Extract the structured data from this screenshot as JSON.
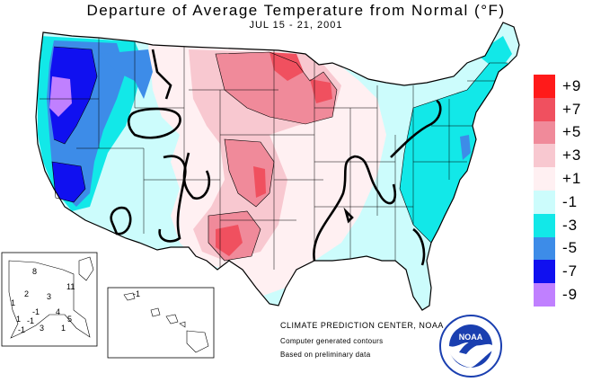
{
  "title": "Departure of Average Temperature from Normal (°F)",
  "subtitle": "JUL 15 - 21, 2001",
  "legend": [
    {
      "label": "+9",
      "color": "#ff1a1a"
    },
    {
      "label": "+7",
      "color": "#f0505f"
    },
    {
      "label": "+5",
      "color": "#f08a9a"
    },
    {
      "label": "+3",
      "color": "#f8c8d0"
    },
    {
      "label": "+1",
      "color": "#fff0f2"
    },
    {
      "label": "-1",
      "color": "#ccfcfc"
    },
    {
      "label": "-3",
      "color": "#12e8e8"
    },
    {
      "label": "-5",
      "color": "#3d8ce8"
    },
    {
      "label": "-7",
      "color": "#1010f0"
    },
    {
      "label": "-9",
      "color": "#c080ff"
    }
  ],
  "credits": {
    "center": "CLIMATE PREDICTION CENTER, NOAA",
    "line2": "Computer generated contours",
    "line3": "Based on preliminary data"
  },
  "logo_text": "NOAA",
  "alaska_labels": [
    "8",
    "11",
    "2",
    "3",
    "1",
    "4",
    "5",
    "-1",
    "1",
    "-1",
    "3",
    "1",
    "-1"
  ],
  "hawaii_labels": [
    "-1"
  ]
}
